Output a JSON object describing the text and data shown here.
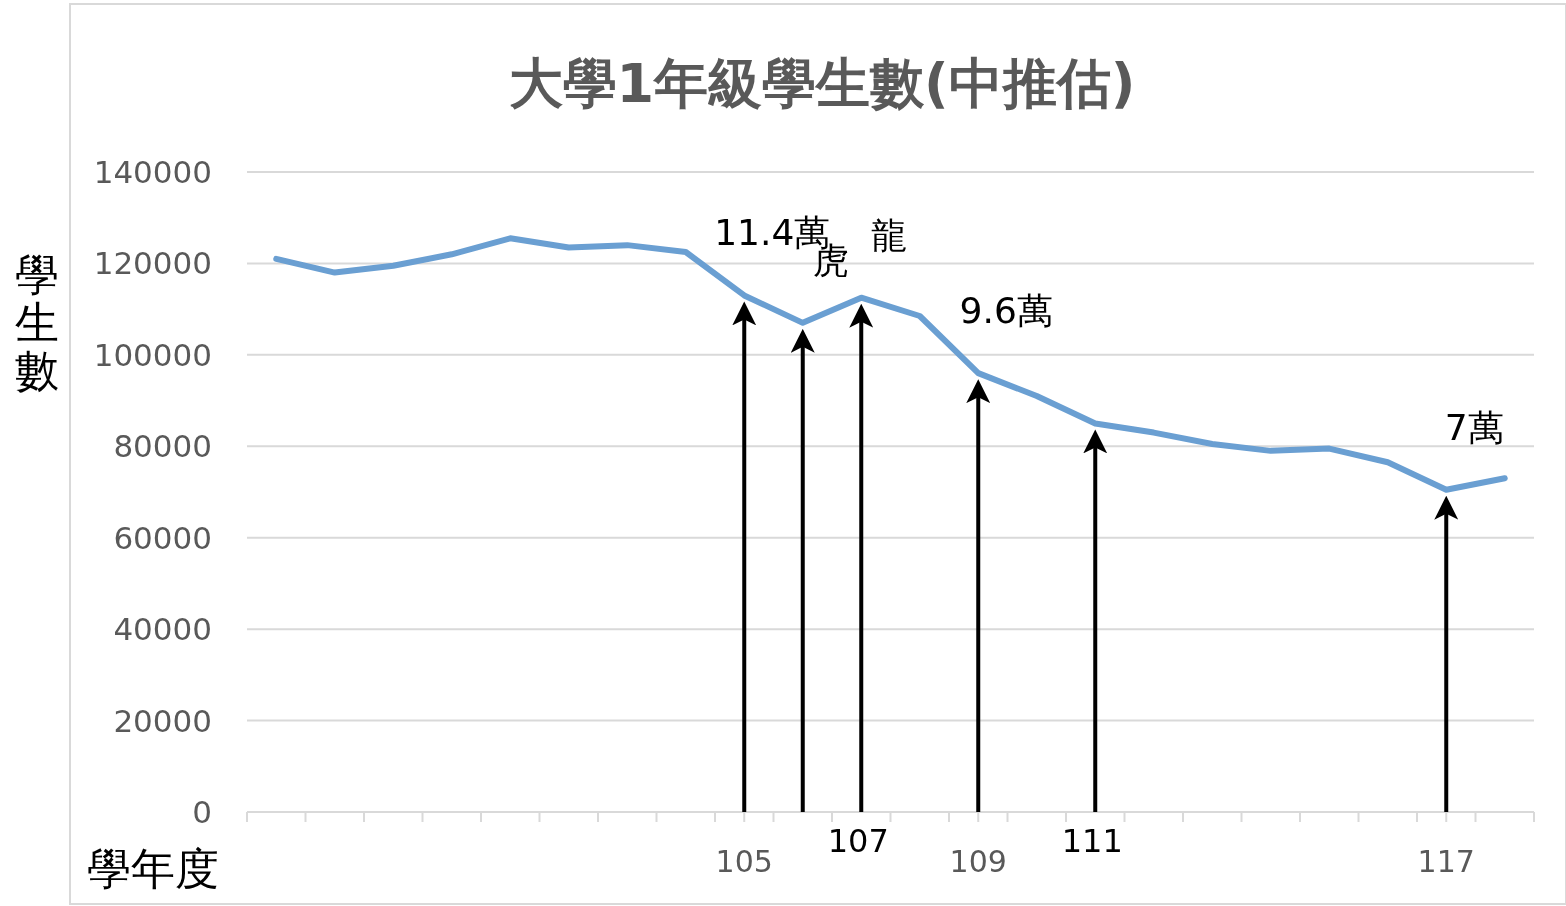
{
  "chart_data": {
    "type": "line",
    "title": "大學1年級學生數(中推估)",
    "ylabel": "學生數",
    "xlabel": "學年度",
    "x": [
      97,
      98,
      99,
      100,
      101,
      102,
      103,
      104,
      105,
      106,
      107,
      108,
      109,
      110,
      111,
      112,
      113,
      114,
      115,
      116,
      117,
      118
    ],
    "series": [
      {
        "color": "#6a9fd2",
        "values": [
          121000,
          118000,
          119500,
          122000,
          125500,
          123500,
          124000,
          122500,
          113000,
          107000,
          112500,
          108500,
          96000,
          91000,
          85000,
          83000,
          80500,
          79000,
          79500,
          76500,
          70500,
          73000
        ]
      }
    ],
    "xlim": [
      96.5,
      118.5
    ],
    "xticks": [
      {
        "value": 96.5,
        "label": null
      },
      {
        "value": 97.5,
        "label": null
      },
      {
        "value": 98.5,
        "label": null
      },
      {
        "value": 99.5,
        "label": null
      },
      {
        "value": 100.5,
        "label": null
      },
      {
        "value": 101.5,
        "label": null
      },
      {
        "value": 102.5,
        "label": null
      },
      {
        "value": 103.5,
        "label": null
      },
      {
        "value": 104.5,
        "label": null
      },
      105,
      {
        "value": 105.5,
        "label": null
      },
      {
        "value": 106.5,
        "label": null
      },
      {
        "value": 107.5,
        "label": null
      },
      {
        "value": 108.5,
        "label": null
      },
      109,
      {
        "value": 109.5,
        "label": null
      },
      {
        "value": 110.5,
        "label": null
      },
      {
        "value": 111.5,
        "label": null
      },
      {
        "value": 112.5,
        "label": null
      },
      {
        "value": 113.5,
        "label": null
      },
      {
        "value": 114.5,
        "label": null
      },
      {
        "value": 115.5,
        "label": null
      },
      {
        "value": 116.5,
        "label": null
      },
      117,
      {
        "value": 117.5,
        "label": null
      },
      {
        "value": 118.5,
        "label": null
      }
    ],
    "ylim": [
      0,
      140000
    ],
    "yticks": [
      0,
      20000,
      40000,
      60000,
      80000,
      100000,
      120000,
      140000
    ],
    "grid": "y",
    "ref_lines": [
      {
        "axis": "x",
        "value": 105,
        "color": "#000000"
      },
      {
        "axis": "x",
        "value": 106,
        "color": "#000000"
      },
      {
        "axis": "x",
        "value": 107,
        "label": "107",
        "color": "#000000"
      },
      {
        "axis": "x",
        "value": 109,
        "color": "#000000"
      },
      {
        "axis": "x",
        "value": 111,
        "label": "111",
        "color": "#000000"
      },
      {
        "axis": "x",
        "value": 117,
        "color": "#000000"
      }
    ],
    "annotations": [
      {
        "text": "11.4萬",
        "x": 105,
        "y": 113000
      },
      {
        "text": "虎",
        "x": 106,
        "y": 107000
      },
      {
        "text": "龍",
        "x": 107,
        "y": 112500
      },
      {
        "text": "9.6萬",
        "x": 109,
        "y": 96000
      },
      {
        "text": "7萬",
        "x": 117,
        "y": 70500
      }
    ]
  }
}
